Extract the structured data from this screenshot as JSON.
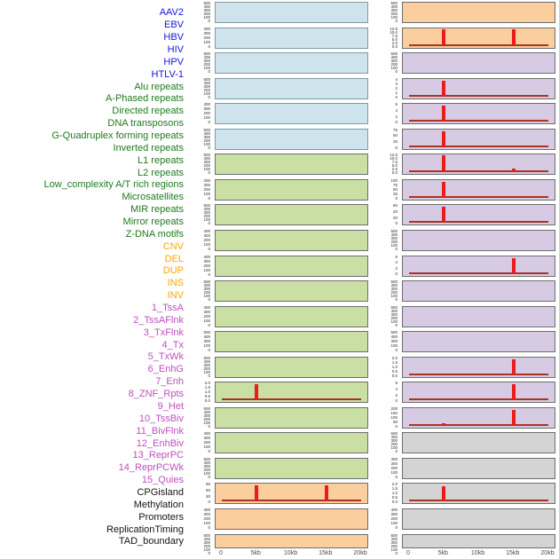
{
  "figure_title": "",
  "label_colors": {
    "virus": "#1414e0",
    "repeat": "#1f7a1f",
    "sv": "#ffa500",
    "chromatin": "#bf4fbf",
    "other": "#141414"
  },
  "panel_colors": {
    "blue": "#cee3ec",
    "green": "#c9dfa4",
    "orange": "#fbce9d",
    "purple": "#d7cbe3",
    "gray": "#d4d4d4"
  },
  "line_colors": {
    "baseline": "#aa3322",
    "spike": "#ec1c1c"
  },
  "chart_data": {
    "type": "line",
    "title": "Feature density tracks in 0-20kb windows, two panel columns of 22 mini-plots (rows read top-to-bottom, left column then right column)",
    "xlabel": "",
    "ylabel": "",
    "x_range_kb": [
      0,
      20
    ],
    "x_ticks": [
      "0",
      "5kb",
      "10kb",
      "15kb",
      "20kb"
    ],
    "grid": false,
    "legend": "none",
    "row_labels": [
      {
        "text": "AAV2",
        "group": "virus"
      },
      {
        "text": "EBV",
        "group": "virus"
      },
      {
        "text": "HBV",
        "group": "virus"
      },
      {
        "text": "HIV",
        "group": "virus"
      },
      {
        "text": "HPV",
        "group": "virus"
      },
      {
        "text": "HTLV-1",
        "group": "virus"
      },
      {
        "text": "Alu repeats",
        "group": "repeat"
      },
      {
        "text": "A-Phased repeats",
        "group": "repeat"
      },
      {
        "text": "Directed repeats",
        "group": "repeat"
      },
      {
        "text": "DNA transposons",
        "group": "repeat"
      },
      {
        "text": "G-Quadruplex forming repeats",
        "group": "repeat"
      },
      {
        "text": "Inverted repeats",
        "group": "repeat"
      },
      {
        "text": "L1 repeats",
        "group": "repeat"
      },
      {
        "text": "L2 repeats",
        "group": "repeat"
      },
      {
        "text": "Low_complexity A/T rich regions",
        "group": "repeat"
      },
      {
        "text": "Microsatellites",
        "group": "repeat"
      },
      {
        "text": "MIR repeats",
        "group": "repeat"
      },
      {
        "text": "Mirror repeats",
        "group": "repeat"
      },
      {
        "text": "Z-DNA motifs",
        "group": "repeat"
      },
      {
        "text": "CNV",
        "group": "sv"
      },
      {
        "text": "DEL",
        "group": "sv"
      },
      {
        "text": "DUP",
        "group": "sv"
      },
      {
        "text": "INS",
        "group": "sv"
      },
      {
        "text": "INV",
        "group": "sv"
      },
      {
        "text": "1_TssA",
        "group": "chromatin"
      },
      {
        "text": "2_TssAFlnk",
        "group": "chromatin"
      },
      {
        "text": "3_TxFlnk",
        "group": "chromatin"
      },
      {
        "text": "4_Tx",
        "group": "chromatin"
      },
      {
        "text": "5_TxWk",
        "group": "chromatin"
      },
      {
        "text": "6_EnhG",
        "group": "chromatin"
      },
      {
        "text": "7_Enh",
        "group": "chromatin"
      },
      {
        "text": "8_ZNF_Rpts",
        "group": "chromatin"
      },
      {
        "text": "9_Het",
        "group": "chromatin"
      },
      {
        "text": "10_TssBiv",
        "group": "chromatin"
      },
      {
        "text": "11_BivFlnk",
        "group": "chromatin"
      },
      {
        "text": "12_EnhBiv",
        "group": "chromatin"
      },
      {
        "text": "13_ReprPC",
        "group": "chromatin"
      },
      {
        "text": "14_ReprPCWk",
        "group": "chromatin"
      },
      {
        "text": "15_Quies",
        "group": "chromatin"
      },
      {
        "text": "CPGisland",
        "group": "other"
      },
      {
        "text": "Methylation",
        "group": "other"
      },
      {
        "text": "Promoters",
        "group": "other"
      },
      {
        "text": "ReplicationTiming",
        "group": "other"
      },
      {
        "text": "TAD_boundary",
        "group": "other"
      }
    ],
    "columns": [
      {
        "name": "left",
        "panels": [
          {
            "color": "blue",
            "y_ticks": [
              "500",
              "400",
              "300",
              "200",
              "100",
              "0"
            ],
            "spikes_kb": []
          },
          {
            "color": "blue",
            "y_ticks": [
              "400",
              "300",
              "200",
              "100",
              "0"
            ],
            "spikes_kb": []
          },
          {
            "color": "blue",
            "y_ticks": [
              "500",
              "400",
              "300",
              "200",
              "100",
              "0"
            ],
            "spikes_kb": []
          },
          {
            "color": "blue",
            "y_ticks": [
              "500",
              "400",
              "300",
              "200",
              "100",
              "0"
            ],
            "spikes_kb": []
          },
          {
            "color": "blue",
            "y_ticks": [
              "400",
              "300",
              "200",
              "100",
              "0"
            ],
            "spikes_kb": []
          },
          {
            "color": "blue",
            "y_ticks": [
              "500",
              "400",
              "300",
              "200",
              "100",
              "0"
            ],
            "spikes_kb": []
          },
          {
            "color": "green",
            "y_ticks": [
              "500",
              "400",
              "300",
              "200",
              "100",
              "0"
            ],
            "spikes_kb": []
          },
          {
            "color": "green",
            "y_ticks": [
              "400",
              "300",
              "200",
              "100",
              "0"
            ],
            "spikes_kb": []
          },
          {
            "color": "green",
            "y_ticks": [
              "500",
              "400",
              "300",
              "200",
              "100",
              "0"
            ],
            "spikes_kb": []
          },
          {
            "color": "green",
            "y_ticks": [
              "400",
              "300",
              "200",
              "100",
              "0"
            ],
            "spikes_kb": []
          },
          {
            "color": "green",
            "y_ticks": [
              "400",
              "300",
              "200",
              "100",
              "0"
            ],
            "spikes_kb": []
          },
          {
            "color": "green",
            "y_ticks": [
              "500",
              "400",
              "300",
              "200",
              "100",
              "0"
            ],
            "spikes_kb": []
          },
          {
            "color": "green",
            "y_ticks": [
              "400",
              "300",
              "200",
              "100",
              "0"
            ],
            "spikes_kb": []
          },
          {
            "color": "green",
            "y_ticks": [
              "500",
              "400",
              "300",
              "100",
              "0"
            ],
            "spikes_kb": []
          },
          {
            "color": "green",
            "y_ticks": [
              "500",
              "400",
              "300",
              "200",
              "100",
              "0"
            ],
            "spikes_kb": []
          },
          {
            "color": "green",
            "y_ticks": [
              "2.0",
              "1.5",
              "1.0",
              "0.5",
              "0.0"
            ],
            "spikes_kb": [
              [
                5,
                0.9
              ]
            ]
          },
          {
            "color": "green",
            "y_ticks": [
              "500",
              "400",
              "300",
              "200",
              "100",
              "0"
            ],
            "spikes_kb": []
          },
          {
            "color": "green",
            "y_ticks": [
              "400",
              "300",
              "200",
              "100",
              "0"
            ],
            "spikes_kb": []
          },
          {
            "color": "green",
            "y_ticks": [
              "500",
              "400",
              "300",
              "200",
              "100",
              "0"
            ],
            "spikes_kb": []
          },
          {
            "color": "orange",
            "y_ticks": [
              "90",
              "60",
              "30",
              "0"
            ],
            "spikes_kb": [
              [
                5,
                0.92
              ],
              [
                15,
                0.92
              ]
            ]
          },
          {
            "color": "orange",
            "y_ticks": [
              "400",
              "300",
              "200",
              "100",
              "0"
            ],
            "spikes_kb": []
          },
          {
            "color": "orange",
            "y_ticks": [
              "500",
              "400",
              "300",
              "200",
              "100",
              "0"
            ],
            "spikes_kb": []
          }
        ]
      },
      {
        "name": "right",
        "panels": [
          {
            "color": "orange",
            "y_ticks": [
              "500",
              "400",
              "300",
              "200",
              "100",
              "0"
            ],
            "spikes_kb": []
          },
          {
            "color": "orange",
            "y_ticks": [
              "12.5",
              "10.0",
              "7.5",
              "5.0",
              "2.5",
              "0.0"
            ],
            "spikes_kb": [
              [
                5,
                0.95
              ],
              [
                15,
                0.95
              ]
            ]
          },
          {
            "color": "purple",
            "y_ticks": [
              "500",
              "400",
              "300",
              "200",
              "100",
              "0"
            ],
            "spikes_kb": []
          },
          {
            "color": "purple",
            "y_ticks": [
              "4",
              "3",
              "2",
              "1",
              "0"
            ],
            "spikes_kb": [
              [
                5,
                0.92
              ]
            ]
          },
          {
            "color": "purple",
            "y_ticks": [
              "6",
              "4",
              "2",
              "0"
            ],
            "spikes_kb": [
              [
                5,
                0.92
              ]
            ]
          },
          {
            "color": "purple",
            "y_ticks": [
              "75",
              "50",
              "25",
              "0"
            ],
            "spikes_kb": [
              [
                5,
                0.92
              ]
            ]
          },
          {
            "color": "purple",
            "y_ticks": [
              "12.5",
              "10.0",
              "7.5",
              "5.0",
              "2.5",
              "0.0"
            ],
            "spikes_kb": [
              [
                5,
                0.95
              ],
              [
                15,
                0.18
              ]
            ]
          },
          {
            "color": "purple",
            "y_ticks": [
              "100",
              "75",
              "50",
              "25",
              "0"
            ],
            "spikes_kb": [
              [
                5,
                0.92
              ]
            ]
          },
          {
            "color": "purple",
            "y_ticks": [
              "60",
              "40",
              "20",
              "0"
            ],
            "spikes_kb": [
              [
                5,
                0.92
              ]
            ]
          },
          {
            "color": "purple",
            "y_ticks": [
              "500",
              "400",
              "300",
              "200",
              "100",
              "0"
            ],
            "spikes_kb": []
          },
          {
            "color": "purple",
            "y_ticks": [
              "6",
              "4",
              "2",
              "0"
            ],
            "spikes_kb": [
              [
                15,
                0.92
              ]
            ]
          },
          {
            "color": "purple",
            "y_ticks": [
              "500",
              "400",
              "300",
              "200",
              "100",
              "0"
            ],
            "spikes_kb": []
          },
          {
            "color": "purple",
            "y_ticks": [
              "500",
              "400",
              "300",
              "200",
              "100",
              "0"
            ],
            "spikes_kb": []
          },
          {
            "color": "purple",
            "y_ticks": [
              "500",
              "400",
              "300",
              "100",
              "0"
            ],
            "spikes_kb": []
          },
          {
            "color": "purple",
            "y_ticks": [
              "2.0",
              "1.5",
              "1.0",
              "0.5",
              "0.0"
            ],
            "spikes_kb": [
              [
                15,
                0.9
              ]
            ]
          },
          {
            "color": "purple",
            "y_ticks": [
              "6",
              "4",
              "2",
              "0"
            ],
            "spikes_kb": [
              [
                15,
                0.9
              ]
            ]
          },
          {
            "color": "purple",
            "y_ticks": [
              "200",
              "150",
              "100",
              "50",
              "0"
            ],
            "spikes_kb": [
              [
                5,
                0.1
              ],
              [
                15,
                0.9
              ]
            ]
          },
          {
            "color": "gray",
            "y_ticks": [
              "500",
              "400",
              "300",
              "200",
              "100",
              "0"
            ],
            "spikes_kb": []
          },
          {
            "color": "gray",
            "y_ticks": [
              "400",
              "300",
              "200",
              "100",
              "0"
            ],
            "spikes_kb": []
          },
          {
            "color": "gray",
            "y_ticks": [
              "2.0",
              "1.5",
              "1.0",
              "0.5",
              "0.0"
            ],
            "spikes_kb": [
              [
                5,
                0.85
              ]
            ]
          },
          {
            "color": "gray",
            "y_ticks": [
              "400",
              "300",
              "200",
              "100",
              "0"
            ],
            "spikes_kb": []
          },
          {
            "color": "gray",
            "y_ticks": [
              "500",
              "400",
              "300",
              "200",
              "100",
              "0"
            ],
            "spikes_kb": []
          }
        ]
      }
    ]
  },
  "layout_note_visible_text_only": true
}
